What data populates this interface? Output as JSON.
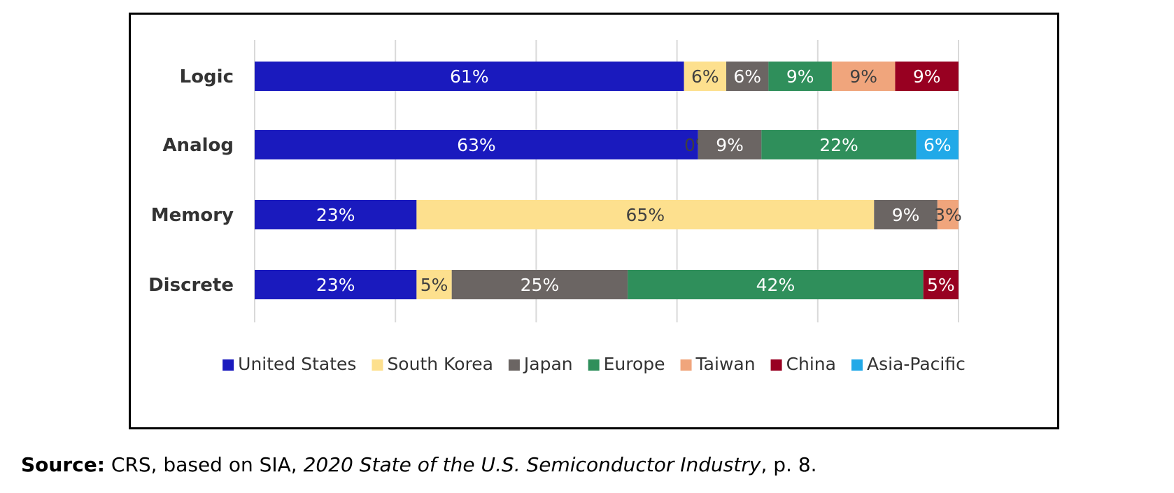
{
  "chart_data": {
    "type": "bar",
    "orientation": "horizontal",
    "stacked": true,
    "categories": [
      "Logic",
      "Analog",
      "Memory",
      "Discrete"
    ],
    "series": [
      {
        "name": "United States",
        "color": "#1a1abe",
        "values": [
          61,
          63,
          23,
          23
        ],
        "labels": [
          "61%",
          "63%",
          "23%",
          "23%"
        ]
      },
      {
        "name": "South Korea",
        "color": "#fde08e",
        "values": [
          6,
          0,
          65,
          5
        ],
        "labels": [
          "6%",
          "0%",
          "65%",
          "5%"
        ]
      },
      {
        "name": "Japan",
        "color": "#6b6563",
        "values": [
          6,
          9,
          9,
          25
        ],
        "labels": [
          "6%",
          "9%",
          "9%",
          "25%"
        ]
      },
      {
        "name": "Europe",
        "color": "#2f8f5b",
        "values": [
          9,
          22,
          0,
          42
        ],
        "labels": [
          "9%",
          "22%",
          "",
          "42%"
        ]
      },
      {
        "name": "Taiwan",
        "color": "#f0a57c",
        "values": [
          9,
          0,
          3,
          0
        ],
        "labels": [
          "9%",
          "",
          "3%",
          ""
        ]
      },
      {
        "name": "China",
        "color": "#980021",
        "values": [
          9,
          0,
          0,
          5
        ],
        "labels": [
          "9%",
          "",
          "",
          "5%"
        ]
      },
      {
        "name": "Asia-Pacific",
        "color": "#21a9e8",
        "values": [
          0,
          6,
          0,
          0
        ],
        "labels": [
          "",
          "6%",
          "",
          ""
        ]
      }
    ],
    "xlim": [
      0,
      100
    ],
    "grid": true,
    "legend_position": "bottom"
  },
  "source": {
    "label": "Source:",
    "text_before": " CRS, based on SIA, ",
    "title": "2020 State of the U.S. Semiconductor Industry",
    "text_after": ", p. 8."
  }
}
